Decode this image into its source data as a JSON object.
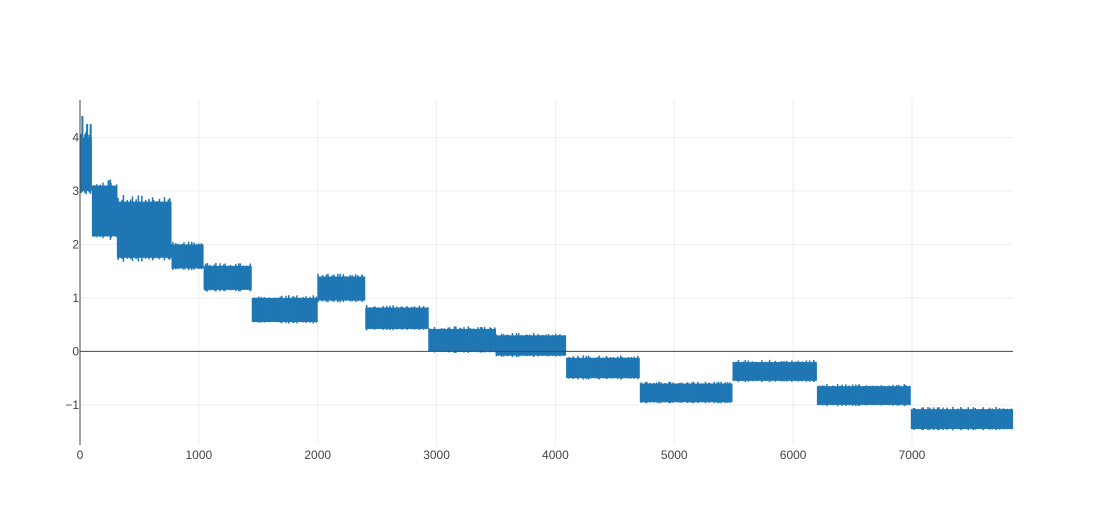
{
  "chart_data": {
    "type": "line",
    "title": "",
    "xlabel": "",
    "ylabel": "",
    "xlim": [
      0,
      7850
    ],
    "ylim": [
      -1.75,
      4.7
    ],
    "x_ticks": [
      0,
      1000,
      2000,
      3000,
      4000,
      5000,
      6000,
      7000
    ],
    "y_ticks": [
      -1,
      0,
      1,
      2,
      3,
      4
    ],
    "x_tick_labels": [
      "0",
      "1000",
      "2000",
      "3000",
      "4000",
      "5000",
      "6000",
      "7000"
    ],
    "y_tick_labels": [
      "−1",
      "0",
      "1",
      "2",
      "3",
      "4"
    ],
    "grid": true,
    "zero_line": true,
    "legend": "none",
    "series_color": "#1f77b4",
    "series": [
      {
        "segments": [
          {
            "x_start": 0,
            "x_end": 100,
            "y_min": 3.0,
            "y_max": 4.0
          },
          {
            "x_start": 100,
            "x_end": 310,
            "y_min": 2.15,
            "y_max": 3.1
          },
          {
            "x_start": 310,
            "x_end": 770,
            "y_min": 1.75,
            "y_max": 2.8
          },
          {
            "x_start": 770,
            "x_end": 1040,
            "y_min": 1.55,
            "y_max": 2.0
          },
          {
            "x_start": 1040,
            "x_end": 1445,
            "y_min": 1.15,
            "y_max": 1.6
          },
          {
            "x_start": 1445,
            "x_end": 2000,
            "y_min": 0.55,
            "y_max": 1.0
          },
          {
            "x_start": 2000,
            "x_end": 2400,
            "y_min": 0.95,
            "y_max": 1.4
          },
          {
            "x_start": 2400,
            "x_end": 2930,
            "y_min": 0.42,
            "y_max": 0.82
          },
          {
            "x_start": 2930,
            "x_end": 3500,
            "y_min": 0.0,
            "y_max": 0.42
          },
          {
            "x_start": 3500,
            "x_end": 4090,
            "y_min": -0.08,
            "y_max": 0.3
          },
          {
            "x_start": 4090,
            "x_end": 4710,
            "y_min": -0.5,
            "y_max": -0.12
          },
          {
            "x_start": 4710,
            "x_end": 5490,
            "y_min": -0.95,
            "y_max": -0.6
          },
          {
            "x_start": 5490,
            "x_end": 6200,
            "y_min": -0.55,
            "y_max": -0.2
          },
          {
            "x_start": 6200,
            "x_end": 6990,
            "y_min": -1.0,
            "y_max": -0.65
          },
          {
            "x_start": 6990,
            "x_end": 7850,
            "y_min": -1.45,
            "y_max": -1.08
          }
        ],
        "spikes": [
          {
            "x": 20,
            "y_min": 3.0,
            "y_max": 4.4
          },
          {
            "x": 60,
            "y_min": 3.0,
            "y_max": 4.25
          },
          {
            "x": 90,
            "y_min": 3.0,
            "y_max": 4.25
          },
          {
            "x": 240,
            "y_min": 2.15,
            "y_max": 3.2
          },
          {
            "x": 500,
            "y_min": 1.75,
            "y_max": 2.8
          },
          {
            "x": 650,
            "y_min": 1.75,
            "y_max": 2.8
          }
        ]
      }
    ]
  }
}
